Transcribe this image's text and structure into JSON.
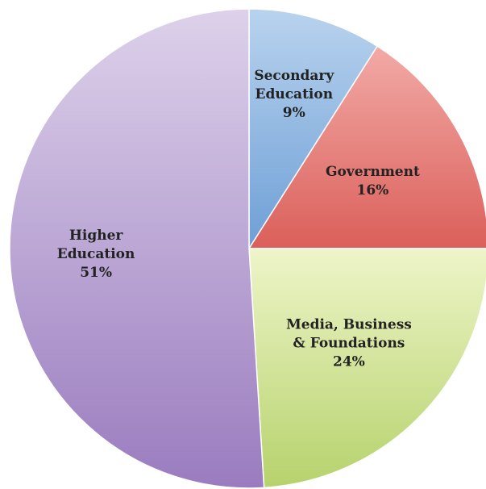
{
  "chart_data": {
    "type": "pie",
    "title": "",
    "slices": [
      {
        "name": "Secondary Education",
        "label_lines": [
          "Secondary",
          "Education"
        ],
        "value": 9,
        "value_label": "9%",
        "color_light": "#b9d3ee",
        "color_dark": "#6e9fd6"
      },
      {
        "name": "Government",
        "label_lines": [
          "Government"
        ],
        "value": 16,
        "value_label": "16%",
        "color_light": "#f2aaa6",
        "color_dark": "#db5f5a"
      },
      {
        "name": "Media, Business & Foundations",
        "label_lines": [
          "Media, Business",
          "& Foundations"
        ],
        "value": 24,
        "value_label": "24%",
        "color_light": "#eef5c9",
        "color_dark": "#b6d26c"
      },
      {
        "name": "Higher Education",
        "label_lines": [
          "Higher",
          "Education"
        ],
        "value": 51,
        "value_label": "51%",
        "color_light": "#ddd1ea",
        "color_dark": "#9a7cbf"
      }
    ],
    "start_angle_deg": 0,
    "direction": "clockwise",
    "legend": "none"
  }
}
